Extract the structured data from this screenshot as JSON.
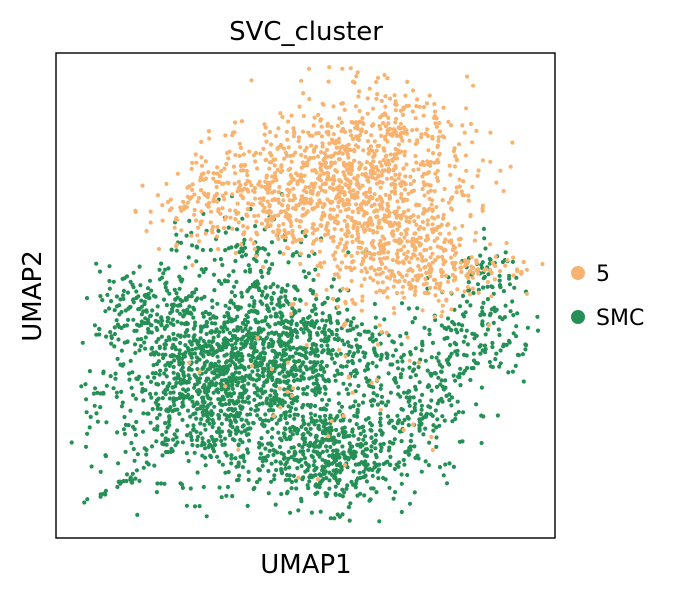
{
  "chart_data": {
    "type": "scatter",
    "title": "SVC_cluster",
    "xlabel": "UMAP1",
    "ylabel": "UMAP2",
    "grid": false,
    "legend_position": "right",
    "xlim": [
      0,
      100
    ],
    "ylim": [
      0,
      100
    ],
    "series": [
      {
        "name": "5",
        "color": "#f7b36f",
        "regions": [
          {
            "cx": 62,
            "cy": 74,
            "rx": 20,
            "ry": 17,
            "n": 900
          },
          {
            "cx": 44,
            "cy": 72,
            "rx": 17,
            "ry": 12,
            "n": 260
          },
          {
            "cx": 28,
            "cy": 68,
            "rx": 10,
            "ry": 8,
            "n": 90
          },
          {
            "cx": 69,
            "cy": 58,
            "rx": 12,
            "ry": 12,
            "n": 260
          },
          {
            "cx": 84,
            "cy": 56,
            "rx": 12,
            "ry": 6,
            "n": 90
          },
          {
            "cx": 50,
            "cy": 30,
            "rx": 30,
            "ry": 22,
            "n": 40
          },
          {
            "cx": 65,
            "cy": 88,
            "rx": 8,
            "ry": 5,
            "n": 40
          }
        ]
      },
      {
        "name": "SMC",
        "color": "#259056",
        "regions": [
          {
            "cx": 32,
            "cy": 30,
            "rx": 22,
            "ry": 17,
            "n": 1100
          },
          {
            "cx": 56,
            "cy": 16,
            "rx": 15,
            "ry": 10,
            "n": 500
          },
          {
            "cx": 45,
            "cy": 40,
            "rx": 20,
            "ry": 13,
            "n": 650
          },
          {
            "cx": 73,
            "cy": 30,
            "rx": 10,
            "ry": 12,
            "n": 180
          },
          {
            "cx": 86,
            "cy": 43,
            "rx": 10,
            "ry": 11,
            "n": 150
          },
          {
            "cx": 17,
            "cy": 47,
            "rx": 9,
            "ry": 8,
            "n": 130
          },
          {
            "cx": 38,
            "cy": 58,
            "rx": 16,
            "ry": 9,
            "n": 120
          },
          {
            "cx": 88,
            "cy": 55,
            "rx": 6,
            "ry": 5,
            "n": 40
          }
        ],
        "tail": {
          "from": [
            4,
            6
          ],
          "to": [
            16,
            12
          ],
          "n": 18
        }
      }
    ]
  }
}
